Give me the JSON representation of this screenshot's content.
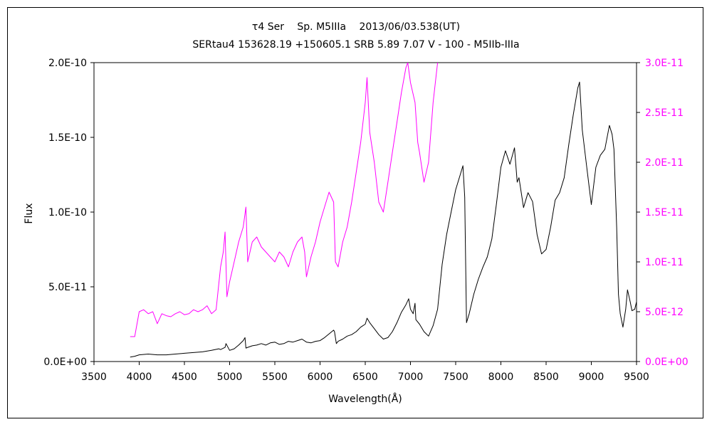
{
  "chart_data": {
    "type": "line",
    "title": "τ4 Ser　 Sp. M5IIIa　 2013/06/03.538(UT)",
    "subtitle": "SERtau4 153628.19 +150605.1 SRB 5.89 7.07 V - 100 - M5IIb-IIIa",
    "xlabel": "Wavelength(Å)",
    "ylabel": "Flux",
    "xlim": [
      3500,
      9500
    ],
    "ylim": [
      0,
      2e-10
    ],
    "y2lim": [
      0,
      3e-11
    ],
    "grid": false,
    "legend": "none",
    "x_tick_labels": [
      "3500",
      "4000",
      "4500",
      "5000",
      "5500",
      "6000",
      "6500",
      "7000",
      "7500",
      "8000",
      "8500",
      "9000",
      "9500"
    ],
    "y_tick_labels": [
      "0.0E+00",
      "5.0E-11",
      "1.0E-10",
      "1.5E-10",
      "2.0E-10"
    ],
    "y2_tick_labels": [
      "0.0E+00",
      "5.0E-12",
      "1.0E-11",
      "1.5E-11",
      "2.0E-11",
      "2.5E-11",
      "3.0E-11"
    ],
    "series": [
      {
        "axis": "left",
        "color": "#000000",
        "x": [
          3900,
          3950,
          4000,
          4100,
          4200,
          4300,
          4400,
          4500,
          4600,
          4700,
          4800,
          4880,
          4900,
          4950,
          4960,
          5000,
          5050,
          5100,
          5150,
          5170,
          5180,
          5200,
          5250,
          5300,
          5350,
          5400,
          5450,
          5500,
          5550,
          5600,
          5650,
          5700,
          5750,
          5800,
          5850,
          5900,
          5950,
          6000,
          6050,
          6100,
          6150,
          6160,
          6180,
          6200,
          6250,
          6300,
          6350,
          6400,
          6450,
          6500,
          6520,
          6550,
          6600,
          6650,
          6700,
          6750,
          6800,
          6850,
          6900,
          6950,
          6980,
          7000,
          7030,
          7050,
          7060,
          7100,
          7150,
          7200,
          7250,
          7300,
          7350,
          7400,
          7450,
          7500,
          7550,
          7580,
          7600,
          7620,
          7650,
          7700,
          7750,
          7800,
          7850,
          7900,
          7950,
          8000,
          8050,
          8100,
          8150,
          8180,
          8200,
          8250,
          8300,
          8350,
          8400,
          8450,
          8500,
          8550,
          8600,
          8650,
          8700,
          8750,
          8800,
          8850,
          8870,
          8900,
          8950,
          9000,
          9050,
          9100,
          9150,
          9200,
          9230,
          9250,
          9280,
          9300,
          9320,
          9350,
          9380,
          9400,
          9430,
          9450,
          9480,
          9500
        ],
        "y": [
          3e-12,
          3.5e-12,
          4.5e-12,
          5e-12,
          4.5e-12,
          4.5e-12,
          5e-12,
          5.5e-12,
          6e-12,
          6.5e-12,
          7.5e-12,
          8.5e-12,
          8e-12,
          9.5e-12,
          1.2e-11,
          7.5e-12,
          8.5e-12,
          1.1e-11,
          1.4e-11,
          1.6e-11,
          9e-12,
          9.5e-12,
          1.05e-11,
          1.1e-11,
          1.2e-11,
          1.1e-11,
          1.25e-11,
          1.3e-11,
          1.15e-11,
          1.2e-11,
          1.35e-11,
          1.3e-11,
          1.4e-11,
          1.5e-11,
          1.3e-11,
          1.25e-11,
          1.35e-11,
          1.4e-11,
          1.6e-11,
          1.85e-11,
          2.1e-11,
          2e-11,
          1.2e-11,
          1.35e-11,
          1.5e-11,
          1.7e-11,
          1.8e-11,
          2e-11,
          2.3e-11,
          2.5e-11,
          2.9e-11,
          2.6e-11,
          2.2e-11,
          1.8e-11,
          1.5e-11,
          1.6e-11,
          2e-11,
          2.6e-11,
          3.3e-11,
          3.8e-11,
          4.2e-11,
          3.5e-11,
          3.2e-11,
          3.9e-11,
          2.8e-11,
          2.5e-11,
          2e-11,
          1.7e-11,
          2.4e-11,
          3.5e-11,
          6.5e-11,
          8.5e-11,
          1e-10,
          1.15e-10,
          1.25e-10,
          1.31e-10,
          1.1e-10,
          2.6e-11,
          3.2e-11,
          4.5e-11,
          5.5e-11,
          6.3e-11,
          7e-11,
          8.2e-11,
          1.05e-10,
          1.3e-10,
          1.41e-10,
          1.32e-10,
          1.43e-10,
          1.2e-10,
          1.23e-10,
          1.03e-10,
          1.13e-10,
          1.07e-10,
          8.5e-11,
          7.2e-11,
          7.5e-11,
          9e-11,
          1.08e-10,
          1.13e-10,
          1.23e-10,
          1.45e-10,
          1.65e-10,
          1.83e-10,
          1.87e-10,
          1.55e-10,
          1.3e-10,
          1.05e-10,
          1.3e-10,
          1.38e-10,
          1.42e-10,
          1.58e-10,
          1.52e-10,
          1.42e-10,
          9e-11,
          4.5e-11,
          3.2e-11,
          2.3e-11,
          3.5e-11,
          4.8e-11,
          4e-11,
          3.4e-11,
          3.5e-11,
          4e-11
        ]
      },
      {
        "axis": "right",
        "color": "#ff00ff",
        "x": [
          3900,
          3950,
          4000,
          4050,
          4100,
          4150,
          4200,
          4250,
          4300,
          4350,
          4400,
          4450,
          4500,
          4550,
          4600,
          4650,
          4700,
          4750,
          4800,
          4850,
          4900,
          4930,
          4950,
          4970,
          5000,
          5050,
          5100,
          5150,
          5180,
          5200,
          5250,
          5300,
          5350,
          5400,
          5450,
          5500,
          5550,
          5600,
          5650,
          5700,
          5750,
          5800,
          5830,
          5850,
          5900,
          5950,
          6000,
          6050,
          6100,
          6150,
          6170,
          6200,
          6250,
          6300,
          6350,
          6400,
          6450,
          6500,
          6520,
          6550,
          6600,
          6650,
          6700,
          6750,
          6800,
          6850,
          6900,
          6950,
          6970,
          7000,
          7050,
          7080,
          7100,
          7150,
          7200,
          7250,
          7300
        ],
        "y": [
          2.5e-12,
          2.5e-12,
          5e-12,
          5.2e-12,
          4.8e-12,
          5e-12,
          3.8e-12,
          4.8e-12,
          4.6e-12,
          4.5e-12,
          4.8e-12,
          5e-12,
          4.7e-12,
          4.8e-12,
          5.2e-12,
          5e-12,
          5.2e-12,
          5.6e-12,
          4.8e-12,
          5.2e-12,
          9.5e-12,
          1.1e-11,
          1.3e-11,
          6.5e-12,
          8e-12,
          1e-11,
          1.2e-11,
          1.35e-11,
          1.55e-11,
          1e-11,
          1.2e-11,
          1.25e-11,
          1.15e-11,
          1.1e-11,
          1.05e-11,
          1e-11,
          1.1e-11,
          1.05e-11,
          9.5e-12,
          1.1e-11,
          1.2e-11,
          1.25e-11,
          1.1e-11,
          8.5e-12,
          1.05e-11,
          1.2e-11,
          1.4e-11,
          1.55e-11,
          1.7e-11,
          1.6e-11,
          1e-11,
          9.5e-12,
          1.2e-11,
          1.35e-11,
          1.6e-11,
          1.9e-11,
          2.2e-11,
          2.6e-11,
          2.85e-11,
          2.3e-11,
          2e-11,
          1.6e-11,
          1.5e-11,
          1.8e-11,
          2.1e-11,
          2.4e-11,
          2.7e-11,
          2.95e-11,
          3e-11,
          2.8e-11,
          2.6e-11,
          2.2e-11,
          2.1e-11,
          1.8e-11,
          2e-11,
          2.6e-11,
          3e-11
        ]
      }
    ]
  }
}
